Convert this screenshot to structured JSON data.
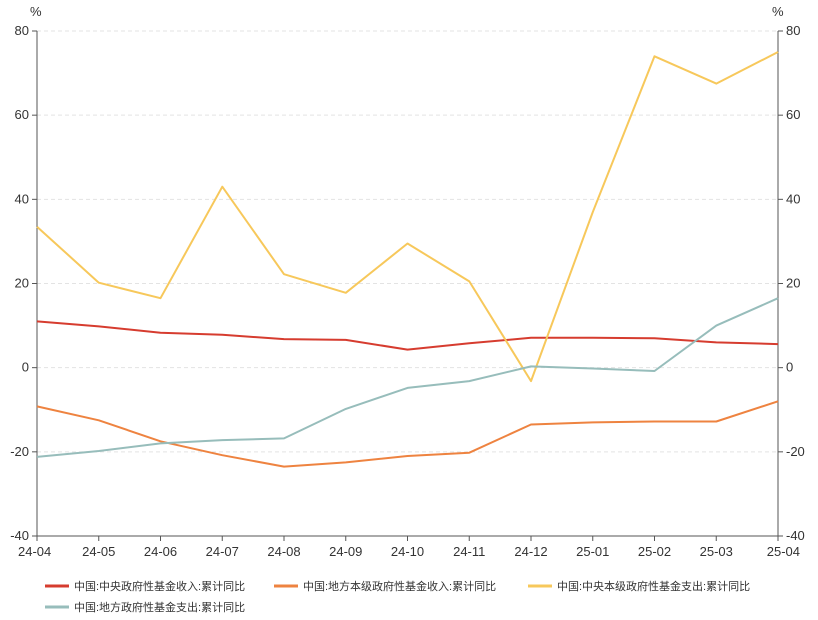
{
  "chart_data": {
    "type": "line",
    "units": {
      "left": "%",
      "right": "%"
    },
    "x": [
      "24-04",
      "24-05",
      "24-06",
      "24-07",
      "24-08",
      "24-09",
      "24-10",
      "24-11",
      "24-12",
      "25-01",
      "25-02",
      "25-03",
      "25-04"
    ],
    "ylim": [
      -40,
      80
    ],
    "yticks": [
      -40,
      -20,
      0,
      20,
      40,
      60,
      80
    ],
    "grid": "horizontal dashed",
    "legend_position": "bottom-left",
    "series": [
      {
        "name": "中国:中央政府性基金收入:累计同比",
        "color": "#d63c2f",
        "values": [
          11.0,
          9.8,
          8.3,
          7.8,
          6.8,
          6.6,
          4.3,
          5.8,
          7.1,
          7.1,
          7.0,
          6.0,
          5.6
        ]
      },
      {
        "name": "中国:地方本级政府性基金收入:累计同比",
        "color": "#ee8340",
        "values": [
          -9.2,
          -12.5,
          -17.5,
          -20.8,
          -23.5,
          -22.5,
          -21.0,
          -20.2,
          -13.5,
          -13.0,
          -12.8,
          -12.8,
          -8.0
        ]
      },
      {
        "name": "中国:中央本级政府性基金支出:累计同比",
        "color": "#f7c85b",
        "values": [
          33.5,
          20.2,
          16.5,
          43.0,
          22.2,
          17.8,
          29.5,
          20.5,
          -3.2,
          37.0,
          74.0,
          67.5,
          75.0
        ]
      },
      {
        "name": "中国:地方政府性基金支出:累计同比",
        "color": "#97bdbb",
        "values": [
          -21.2,
          -19.8,
          -18.0,
          -17.2,
          -16.8,
          -9.8,
          -4.8,
          -3.2,
          0.3,
          -0.2,
          -0.8,
          10.0,
          16.5
        ]
      }
    ]
  }
}
